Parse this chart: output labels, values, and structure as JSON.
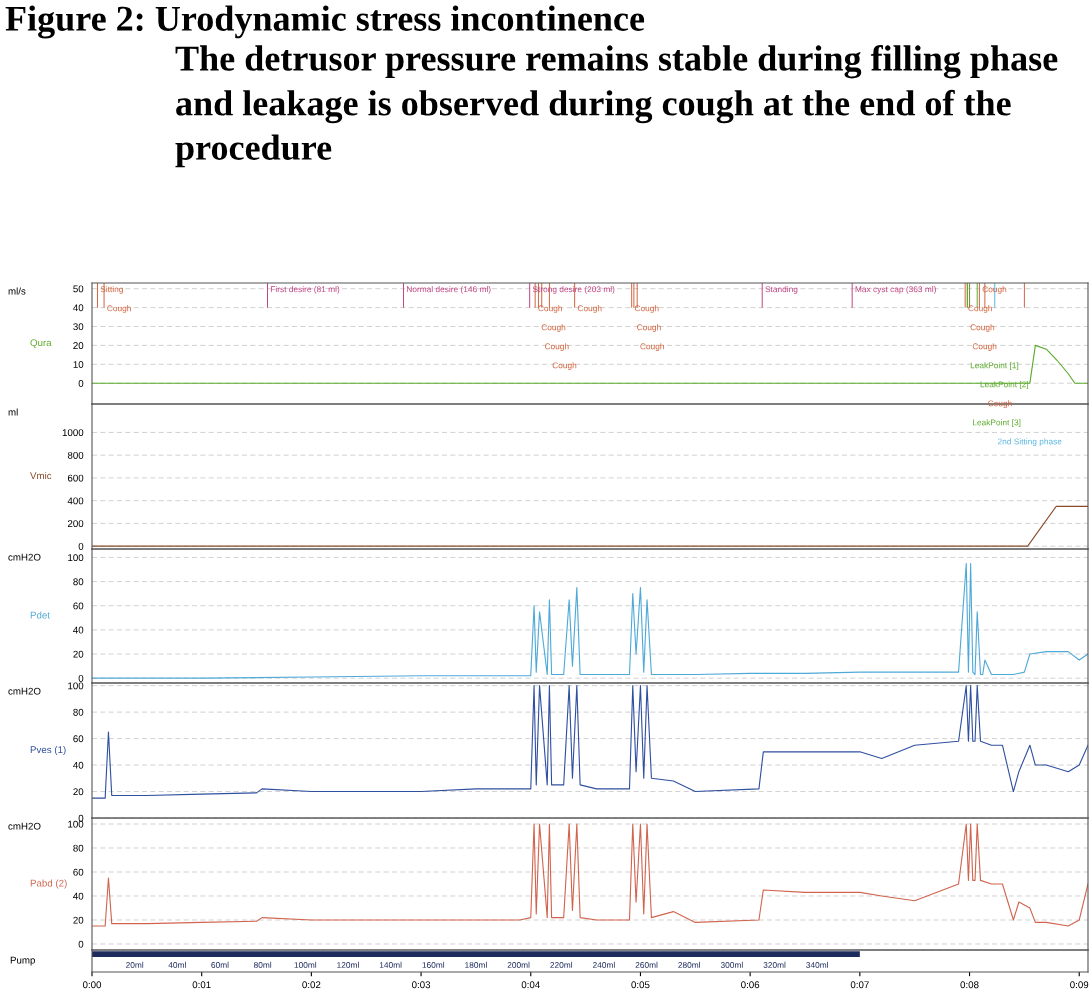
{
  "chart_data": [
    {
      "type": "line",
      "title": "Figure 2: Urodynamic stress incontinence",
      "subtitle": "The detrusor pressure remains stable during filling phase and leakage is observed during cough at the end of the procedure",
      "ylabel": "Qura",
      "x": [
        0,
        8.5,
        8.55,
        8.6,
        8.7,
        8.8,
        8.9,
        8.96,
        9.08
      ],
      "series": [
        {
          "color": "#5aaa2a",
          "values": [
            0,
            0,
            0,
            20,
            18,
            12,
            5,
            0,
            0
          ]
        }
      ],
      "xlim": [
        0,
        9.08
      ],
      "ylim": [
        -11,
        53
      ],
      "yticks": [
        0,
        10,
        20,
        30,
        40,
        50
      ],
      "grid": "y",
      "tick_labels": "y",
      "ref_lines": [
        {
          "axis": "x",
          "value": 0.05,
          "color": "#d0603a",
          "label": "Sitting"
        },
        {
          "axis": "x",
          "value": 0.11,
          "color": "#d0603a",
          "label": "Cough"
        },
        {
          "axis": "x",
          "value": 1.6,
          "color": "#c04080",
          "label": "First desire (81 ml)"
        },
        {
          "axis": "x",
          "value": 2.84,
          "color": "#c04080",
          "label": "Normal desire (146 ml)"
        },
        {
          "axis": "x",
          "value": 3.99,
          "color": "#c04080",
          "label": "Strong desire (203 ml)"
        },
        {
          "axis": "x",
          "value": 4.04,
          "color": "#d0603a",
          "label": "Cough"
        },
        {
          "axis": "x",
          "value": 4.07,
          "color": "#d0603a",
          "label": "Cough"
        },
        {
          "axis": "x",
          "value": 4.1,
          "color": "#d0603a",
          "label": "Cough"
        },
        {
          "axis": "x",
          "value": 4.17,
          "color": "#d0603a",
          "label": "Cough"
        },
        {
          "axis": "x",
          "value": 4.4,
          "color": "#d0603a",
          "label": "Cough"
        },
        {
          "axis": "x",
          "value": 4.92,
          "color": "#d0603a",
          "label": "Cough"
        },
        {
          "axis": "x",
          "value": 4.94,
          "color": "#d0603a",
          "label": "Cough"
        },
        {
          "axis": "x",
          "value": 4.97,
          "color": "#d0603a",
          "label": "Cough"
        },
        {
          "axis": "x",
          "value": 6.11,
          "color": "#c04080",
          "label": "Standing"
        },
        {
          "axis": "x",
          "value": 6.93,
          "color": "#c04080",
          "label": "Max cyst cap (363 ml)"
        },
        {
          "axis": "x",
          "value": 8.09,
          "color": "#d0603a",
          "label": "Cough"
        },
        {
          "axis": "x",
          "value": 7.96,
          "color": "#d0603a",
          "label": "Cough"
        },
        {
          "axis": "x",
          "value": 7.98,
          "color": "#d0603a",
          "label": "Cough"
        },
        {
          "axis": "x",
          "value": 8.0,
          "color": "#d0603a",
          "label": "Cough"
        },
        {
          "axis": "x",
          "value": 7.98,
          "color": "#5aaa2a",
          "label": "LeakPoint [1]"
        },
        {
          "axis": "x",
          "value": 8.07,
          "color": "#5aaa2a",
          "label": "LeakPoint [2]"
        },
        {
          "axis": "x",
          "value": 8.14,
          "color": "#d0603a",
          "label": "Cough"
        },
        {
          "axis": "x",
          "value": 8.0,
          "color": "#5aaa2a",
          "label": "LeakPoint [3]"
        },
        {
          "axis": "x",
          "value": 8.23,
          "color": "#55b5dd",
          "label": "2nd Sitting phase"
        },
        {
          "axis": "x",
          "value": 8.5,
          "color": "#d0603a"
        }
      ],
      "annotations": [
        "ml/s"
      ]
    },
    {
      "type": "line",
      "ylabel": "Vmic",
      "x": [
        0,
        8.53,
        8.79,
        9.08
      ],
      "series": [
        {
          "color": "#8b4a2b",
          "values": [
            0,
            0,
            350,
            350
          ]
        }
      ],
      "xlim": [
        0,
        9.08
      ],
      "ylim": [
        -25,
        1250
      ],
      "yticks": [
        0,
        200,
        400,
        600,
        800,
        1000
      ],
      "grid": "y",
      "tick_labels": "y",
      "annotations": [
        "ml"
      ]
    },
    {
      "type": "line",
      "ylabel": "Pdet",
      "x": [
        0,
        0.5,
        1,
        2,
        3,
        4.0,
        4.03,
        4.05,
        4.08,
        4.15,
        4.17,
        4.19,
        4.3,
        4.35,
        4.38,
        4.42,
        4.45,
        4.6,
        4.9,
        4.93,
        4.96,
        5.0,
        5.03,
        5.06,
        5.1,
        5.5,
        6,
        6.5,
        7,
        7.5,
        7.9,
        7.97,
        7.99,
        8.01,
        8.03,
        8.05,
        8.07,
        8.1,
        8.12,
        8.14,
        8.2,
        8.4,
        8.5,
        8.55,
        8.7,
        8.9,
        9.0,
        9.08
      ],
      "series": [
        {
          "color": "#4fa9d8",
          "values": [
            0,
            0,
            0,
            1,
            2,
            2,
            60,
            5,
            55,
            3,
            65,
            3,
            3,
            65,
            10,
            75,
            3,
            3,
            3,
            70,
            20,
            75,
            5,
            65,
            3,
            3,
            4,
            4,
            5,
            5,
            5,
            95,
            5,
            95,
            5,
            3,
            55,
            3,
            3,
            15,
            3,
            3,
            5,
            20,
            22,
            22,
            15,
            20
          ]
        }
      ],
      "xlim": [
        0,
        9.08
      ],
      "ylim": [
        -4,
        107
      ],
      "yticks": [
        0,
        20,
        40,
        60,
        80,
        100
      ],
      "grid": "y",
      "tick_labels": "y",
      "annotations": [
        "cmH2O"
      ]
    },
    {
      "type": "line",
      "ylabel": "Pves (1)",
      "x": [
        0,
        0.12,
        0.15,
        0.18,
        0.5,
        1,
        1.5,
        1.55,
        2,
        2.5,
        3,
        3.5,
        3.9,
        4.0,
        4.03,
        4.05,
        4.08,
        4.15,
        4.17,
        4.19,
        4.3,
        4.35,
        4.38,
        4.42,
        4.45,
        4.6,
        4.9,
        4.93,
        4.96,
        5.0,
        5.03,
        5.06,
        5.1,
        5.3,
        5.5,
        6.08,
        6.12,
        6.5,
        7.0,
        7.2,
        7.5,
        7.9,
        7.97,
        7.99,
        8.01,
        8.03,
        8.05,
        8.07,
        8.1,
        8.2,
        8.3,
        8.4,
        8.45,
        8.55,
        8.6,
        8.7,
        8.9,
        9.0,
        9.08
      ],
      "series": [
        {
          "color": "#2f4f9f",
          "values": [
            15,
            15,
            65,
            17,
            17,
            18,
            19,
            22,
            20,
            20,
            20,
            22,
            22,
            22,
            100,
            25,
            100,
            25,
            100,
            25,
            25,
            100,
            30,
            100,
            25,
            22,
            22,
            100,
            35,
            100,
            30,
            100,
            30,
            28,
            20,
            22,
            50,
            50,
            50,
            45,
            55,
            58,
            100,
            58,
            100,
            58,
            58,
            100,
            58,
            55,
            55,
            20,
            35,
            55,
            40,
            40,
            35,
            40,
            55
          ]
        }
      ],
      "xlim": [
        0,
        9.08
      ],
      "ylim": [
        0,
        102
      ],
      "yticks": [
        0,
        20,
        40,
        60,
        80,
        100
      ],
      "grid": "y",
      "tick_labels": "y",
      "annotations": [
        "cmH2O"
      ]
    },
    {
      "type": "line",
      "ylabel": "Pabd (2)",
      "x": [
        0,
        0.12,
        0.15,
        0.18,
        0.5,
        1,
        1.5,
        1.55,
        2,
        2.5,
        3,
        3.5,
        3.9,
        4.0,
        4.03,
        4.05,
        4.08,
        4.15,
        4.17,
        4.19,
        4.3,
        4.35,
        4.38,
        4.42,
        4.45,
        4.6,
        4.9,
        4.93,
        4.96,
        5.0,
        5.03,
        5.06,
        5.1,
        5.3,
        5.5,
        6.08,
        6.12,
        6.5,
        7.0,
        7.2,
        7.5,
        7.9,
        7.97,
        7.99,
        8.01,
        8.03,
        8.05,
        8.07,
        8.1,
        8.2,
        8.3,
        8.4,
        8.45,
        8.55,
        8.6,
        8.7,
        8.9,
        9.0,
        9.08
      ],
      "series": [
        {
          "color": "#d0644f",
          "values": [
            15,
            15,
            55,
            17,
            17,
            18,
            19,
            22,
            20,
            20,
            20,
            20,
            20,
            22,
            100,
            25,
            100,
            22,
            100,
            22,
            22,
            100,
            28,
            100,
            22,
            20,
            20,
            100,
            35,
            100,
            25,
            100,
            22,
            27,
            18,
            20,
            45,
            43,
            43,
            40,
            36,
            50,
            100,
            53,
            100,
            53,
            53,
            100,
            53,
            50,
            50,
            20,
            35,
            30,
            18,
            18,
            15,
            20,
            50
          ]
        }
      ],
      "xlim": [
        0,
        9.08
      ],
      "ylim": [
        -5,
        105
      ],
      "yticks": [
        0,
        20,
        40,
        60,
        80,
        100
      ],
      "grid": "y",
      "tick_labels": "y",
      "annotations": [
        "cmH2O"
      ]
    },
    {
      "type": "bar",
      "orientation": "horizontal",
      "ylabel": "Pump",
      "categories": [
        null
      ],
      "base": [
        0
      ],
      "values": [
        7.0
      ],
      "color": "#1c2a5c",
      "xlim": [
        0,
        9.08
      ],
      "xticks": [
        {
          "value": 0,
          "label": "0:00"
        },
        {
          "value": 1,
          "label": "0:01"
        },
        {
          "value": 2,
          "label": "0:02"
        },
        {
          "value": 3,
          "label": "0:03"
        },
        {
          "value": 4,
          "label": "0:04"
        },
        {
          "value": 5,
          "label": "0:05"
        },
        {
          "value": 6,
          "label": "0:06"
        },
        {
          "value": 7,
          "label": "0:07"
        },
        {
          "value": 8,
          "label": "0:08"
        },
        {
          "value": 9,
          "label": "0:09"
        }
      ],
      "tick_labels": "x",
      "annotations": [
        "20ml",
        "40ml",
        "60ml",
        "80ml",
        "100ml",
        "120ml",
        "140ml",
        "160ml",
        "180ml",
        "200ml",
        "220ml",
        "240ml",
        "260ml",
        "280ml",
        "300ml",
        "320ml",
        "340ml"
      ]
    }
  ]
}
